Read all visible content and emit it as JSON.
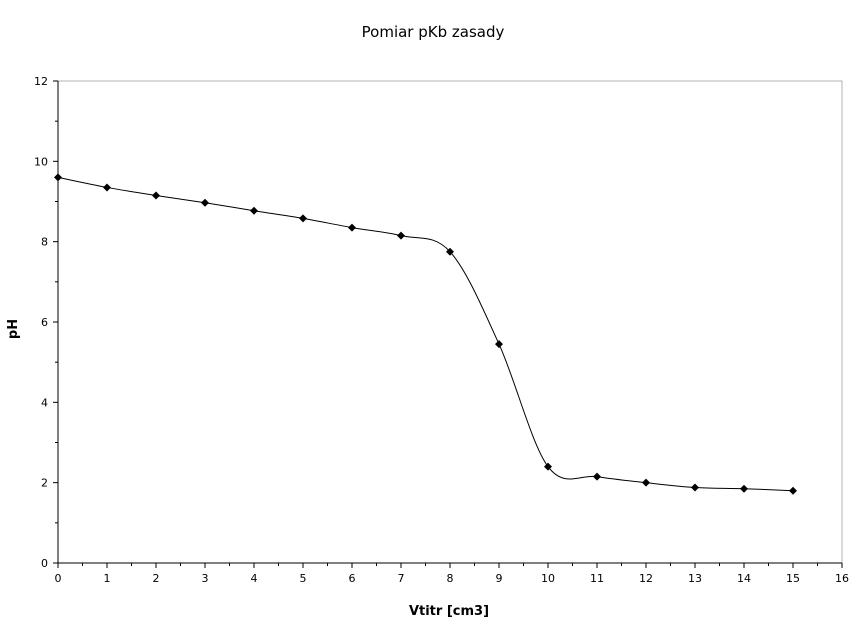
{
  "chart_data": {
    "type": "line",
    "title": "Pomiar pKb zasady",
    "xlabel": "Vtitr [cm3]",
    "ylabel": "pH",
    "xlim": [
      0,
      16
    ],
    "ylim": [
      0,
      12
    ],
    "x_ticks": [
      "0",
      "1",
      "2",
      "3",
      "4",
      "5",
      "6",
      "7",
      "8",
      "9",
      "10",
      "11",
      "12",
      "13",
      "14",
      "15",
      "16"
    ],
    "y_ticks": [
      "0",
      "2",
      "4",
      "6",
      "8",
      "10",
      "12"
    ],
    "grid": false,
    "legend": "none",
    "marker": "diamond",
    "smooth": true,
    "series": [
      {
        "x": [
          0,
          1,
          2,
          3,
          4,
          5,
          6,
          7,
          8,
          9,
          10,
          11,
          12,
          13,
          14,
          15
        ],
        "y": [
          9.6,
          9.35,
          9.15,
          8.97,
          8.77,
          8.58,
          8.35,
          8.15,
          7.75,
          5.45,
          2.4,
          2.15,
          2.0,
          1.88,
          1.85,
          1.8
        ]
      }
    ]
  }
}
